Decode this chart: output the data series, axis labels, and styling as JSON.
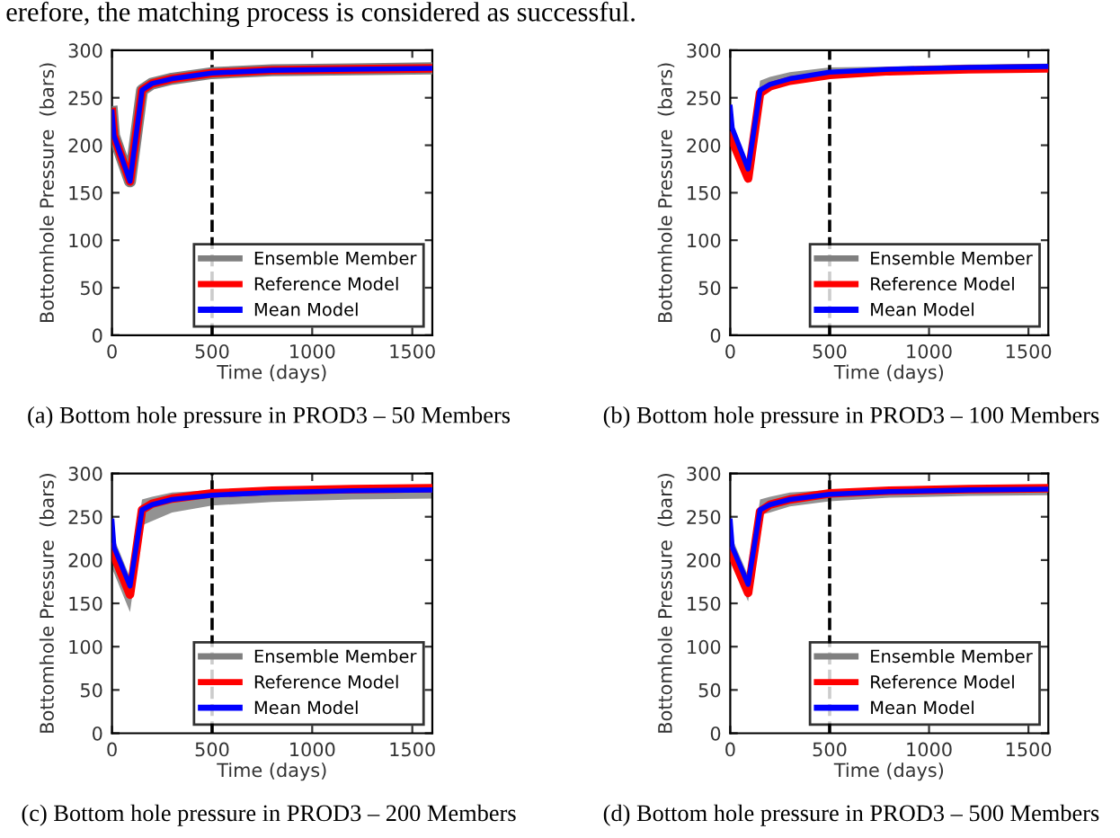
{
  "chart_data": [
    {
      "type": "line",
      "xlabel": "Time (days)",
      "ylabel": "Bottomhole Pressure  (bars)",
      "xlim": [
        0,
        1600
      ],
      "ylim": [
        0,
        300
      ],
      "xticks": [
        0,
        500,
        1000,
        1500
      ],
      "yticks": [
        0,
        50,
        100,
        150,
        200,
        250,
        300
      ],
      "grid": false,
      "legend": "bottom right",
      "x": [
        0,
        10,
        90,
        150,
        200,
        300,
        500,
        800,
        1200,
        1600
      ],
      "ref_lines": [
        {
          "axis": "x",
          "value": 500,
          "color": "#000000",
          "line_style": "dashed"
        }
      ],
      "annotations": [
        "erefore, the matching process is considered as successful.",
        "(a) Bottom hole pressure in PROD3 – 50 Members"
      ],
      "series": [
        {
          "name": "Ensemble Member",
          "color": "#7f7f7f",
          "values": [
            235,
            210,
            162,
            258,
            265,
            270,
            276,
            279,
            280,
            281
          ]
        },
        {
          "name": "Reference Model",
          "color": "#ff0000",
          "values": [
            235,
            210,
            162,
            258,
            265,
            270,
            276,
            279,
            280,
            281
          ]
        },
        {
          "name": "Mean Model",
          "color": "#0000ff",
          "values": [
            235,
            210,
            162,
            258,
            265,
            270,
            276,
            279,
            280,
            281
          ]
        }
      ]
    },
    {
      "type": "line",
      "xlabel": "Time (days)",
      "ylabel": "Bottomhole Pressure  (bars)",
      "xlim": [
        0,
        1600
      ],
      "ylim": [
        0,
        300
      ],
      "xticks": [
        0,
        500,
        1000,
        1500
      ],
      "yticks": [
        0,
        50,
        100,
        150,
        200,
        250,
        300
      ],
      "grid": false,
      "legend": "bottom right",
      "x": [
        0,
        10,
        90,
        150,
        200,
        300,
        500,
        800,
        1200,
        1600
      ],
      "ref_lines": [
        {
          "axis": "x",
          "value": 500,
          "color": "#000000",
          "line_style": "dashed"
        }
      ],
      "annotations": [
        "(b) Bottom hole pressure in PROD3 – 100 Members"
      ],
      "series": [
        {
          "name": "Ensemble Member",
          "color": "#7f7f7f",
          "values": [
            null,
            null,
            null,
            null,
            null,
            null,
            null,
            null,
            null,
            null
          ],
          "lower": [
            205,
            200,
            165,
            255,
            258,
            265,
            272,
            276,
            278,
            279
          ],
          "upper": [
            240,
            225,
            178,
            268,
            272,
            277,
            282,
            283,
            285,
            286
          ]
        },
        {
          "name": "Reference Model",
          "color": "#ff0000",
          "values": [
            210,
            205,
            165,
            255,
            262,
            268,
            274,
            278,
            280,
            281
          ]
        },
        {
          "name": "Mean Model",
          "color": "#0000ff",
          "values": [
            240,
            218,
            175,
            258,
            264,
            270,
            277,
            280,
            282,
            283
          ]
        }
      ]
    },
    {
      "type": "line",
      "xlabel": "Time (days)",
      "ylabel": "Bottomhole Pressure  (bars)",
      "xlim": [
        0,
        1600
      ],
      "ylim": [
        0,
        300
      ],
      "xticks": [
        0,
        500,
        1000,
        1500
      ],
      "yticks": [
        0,
        50,
        100,
        150,
        200,
        250,
        300
      ],
      "grid": false,
      "legend": "bottom right",
      "x": [
        0,
        10,
        90,
        150,
        200,
        300,
        500,
        800,
        1200,
        1600
      ],
      "ref_lines": [
        {
          "axis": "x",
          "value": 500,
          "color": "#000000",
          "line_style": "dashed"
        }
      ],
      "annotations": [
        "(c) Bottom hole pressure in PROD3 – 200 Members"
      ],
      "series": [
        {
          "name": "Ensemble Member",
          "color": "#7f7f7f",
          "values": [
            null,
            null,
            null,
            null,
            null,
            null,
            null,
            null,
            null,
            null
          ],
          "lower": [
            190,
            185,
            140,
            240,
            245,
            255,
            263,
            267,
            270,
            271
          ],
          "upper": [
            245,
            225,
            180,
            270,
            273,
            278,
            281,
            283,
            284,
            285
          ]
        },
        {
          "name": "Reference Model",
          "color": "#ff0000",
          "values": [
            215,
            205,
            160,
            258,
            265,
            271,
            277,
            280,
            282,
            283
          ]
        },
        {
          "name": "Mean Model",
          "color": "#0000ff",
          "values": [
            245,
            215,
            170,
            258,
            264,
            270,
            275,
            278,
            280,
            281
          ]
        }
      ]
    },
    {
      "type": "line",
      "xlabel": "Time (days)",
      "ylabel": "Bottomhole Pressure  (bars)",
      "xlim": [
        0,
        1600
      ],
      "ylim": [
        0,
        300
      ],
      "xticks": [
        0,
        500,
        1000,
        1500
      ],
      "yticks": [
        0,
        50,
        100,
        150,
        200,
        250,
        300
      ],
      "grid": false,
      "legend": "bottom right",
      "x": [
        0,
        10,
        90,
        150,
        200,
        300,
        500,
        800,
        1200,
        1600
      ],
      "ref_lines": [
        {
          "axis": "x",
          "value": 500,
          "color": "#000000",
          "line_style": "dashed"
        }
      ],
      "annotations": [
        "(d) Bottom hole pressure in PROD3 – 500 Members"
      ],
      "series": [
        {
          "name": "Ensemble Member",
          "color": "#7f7f7f",
          "values": [
            null,
            null,
            null,
            null,
            null,
            null,
            null,
            null,
            null,
            null
          ],
          "lower": [
            200,
            195,
            152,
            252,
            255,
            262,
            268,
            272,
            274,
            275
          ],
          "upper": [
            245,
            225,
            182,
            270,
            273,
            278,
            281,
            283,
            285,
            286
          ]
        },
        {
          "name": "Reference Model",
          "color": "#ff0000",
          "values": [
            210,
            205,
            162,
            256,
            264,
            270,
            277,
            280,
            282,
            283
          ]
        },
        {
          "name": "Mean Model",
          "color": "#0000ff",
          "values": [
            245,
            215,
            172,
            258,
            264,
            270,
            276,
            279,
            281,
            282
          ]
        }
      ]
    }
  ]
}
